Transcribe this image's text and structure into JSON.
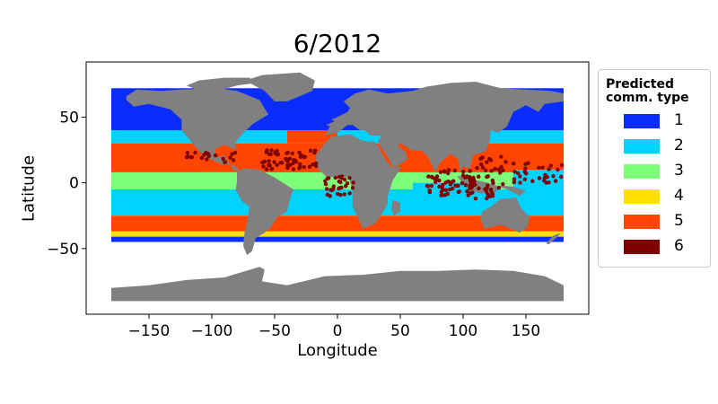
{
  "title": "6/2012",
  "xlabel": "Longitude",
  "ylabel": "Latitude",
  "legend": {
    "title_line1": "Predicted",
    "title_line2": "comm. type",
    "items": [
      {
        "label": "1",
        "color": "#0a2cff"
      },
      {
        "label": "2",
        "color": "#00d2ff"
      },
      {
        "label": "3",
        "color": "#7dff7a"
      },
      {
        "label": "4",
        "color": "#ffe100"
      },
      {
        "label": "5",
        "color": "#ff4500"
      },
      {
        "label": "6",
        "color": "#800000"
      }
    ]
  },
  "chart_data": {
    "type": "scatter",
    "title": "6/2012",
    "xlabel": "Longitude",
    "ylabel": "Latitude",
    "xlim": [
      -200,
      200
    ],
    "ylim": [
      -100,
      92
    ],
    "xticks": [
      -150,
      -100,
      -50,
      0,
      50,
      100,
      150
    ],
    "xtick_labels": [
      "−150",
      "−100",
      "−50",
      "0",
      "50",
      "100",
      "150"
    ],
    "yticks": [
      -50,
      0,
      50
    ],
    "ytick_labels": [
      "−50",
      "0",
      "50"
    ],
    "land_color": "#808080",
    "legend_location": "outside-right",
    "series": [
      {
        "name": "1",
        "color": "#0a2cff"
      },
      {
        "name": "2",
        "color": "#00d2ff"
      },
      {
        "name": "3",
        "color": "#7dff7a"
      },
      {
        "name": "4",
        "color": "#ffe100"
      },
      {
        "name": "5",
        "color": "#ff4500"
      },
      {
        "name": "6",
        "color": "#800000"
      }
    ]
  }
}
